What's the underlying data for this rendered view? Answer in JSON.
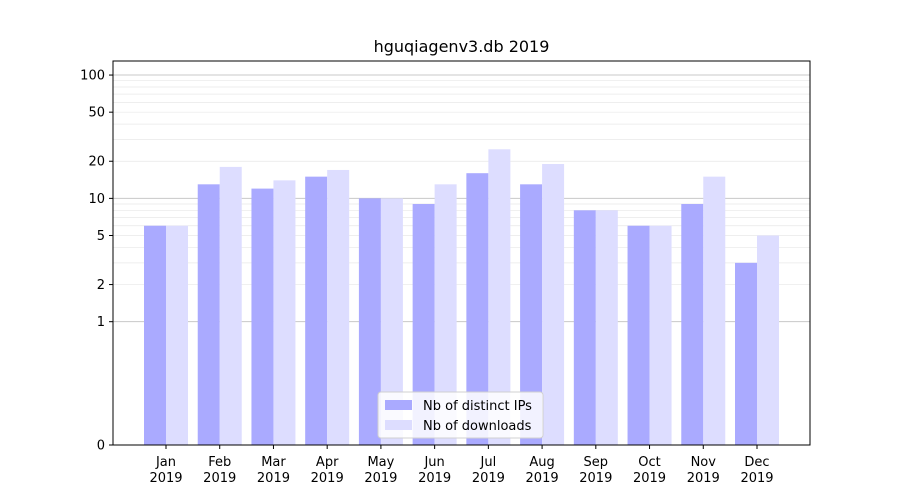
{
  "chart_data": {
    "type": "bar",
    "title": "hguqiagenv3.db 2019",
    "xlabel": "",
    "ylabel": "",
    "yscale": "symlog",
    "ylim": [
      0,
      130
    ],
    "yticks": [
      0,
      1,
      2,
      5,
      10,
      20,
      50,
      100
    ],
    "categories": [
      [
        "Jan",
        "2019"
      ],
      [
        "Feb",
        "2019"
      ],
      [
        "Mar",
        "2019"
      ],
      [
        "Apr",
        "2019"
      ],
      [
        "May",
        "2019"
      ],
      [
        "Jun",
        "2019"
      ],
      [
        "Jul",
        "2019"
      ],
      [
        "Aug",
        "2019"
      ],
      [
        "Sep",
        "2019"
      ],
      [
        "Oct",
        "2019"
      ],
      [
        "Nov",
        "2019"
      ],
      [
        "Dec",
        "2019"
      ]
    ],
    "series": [
      {
        "name": "Nb of distinct IPs",
        "color": "#aaaaff",
        "values": [
          6,
          13,
          12,
          15,
          10,
          9,
          16,
          13,
          8,
          6,
          9,
          3
        ]
      },
      {
        "name": "Nb of downloads",
        "color": "#ddddff",
        "values": [
          6,
          18,
          14,
          17,
          10,
          13,
          25,
          19,
          8,
          6,
          15,
          5
        ]
      }
    ],
    "legend": "lower-center",
    "grid": true
  }
}
